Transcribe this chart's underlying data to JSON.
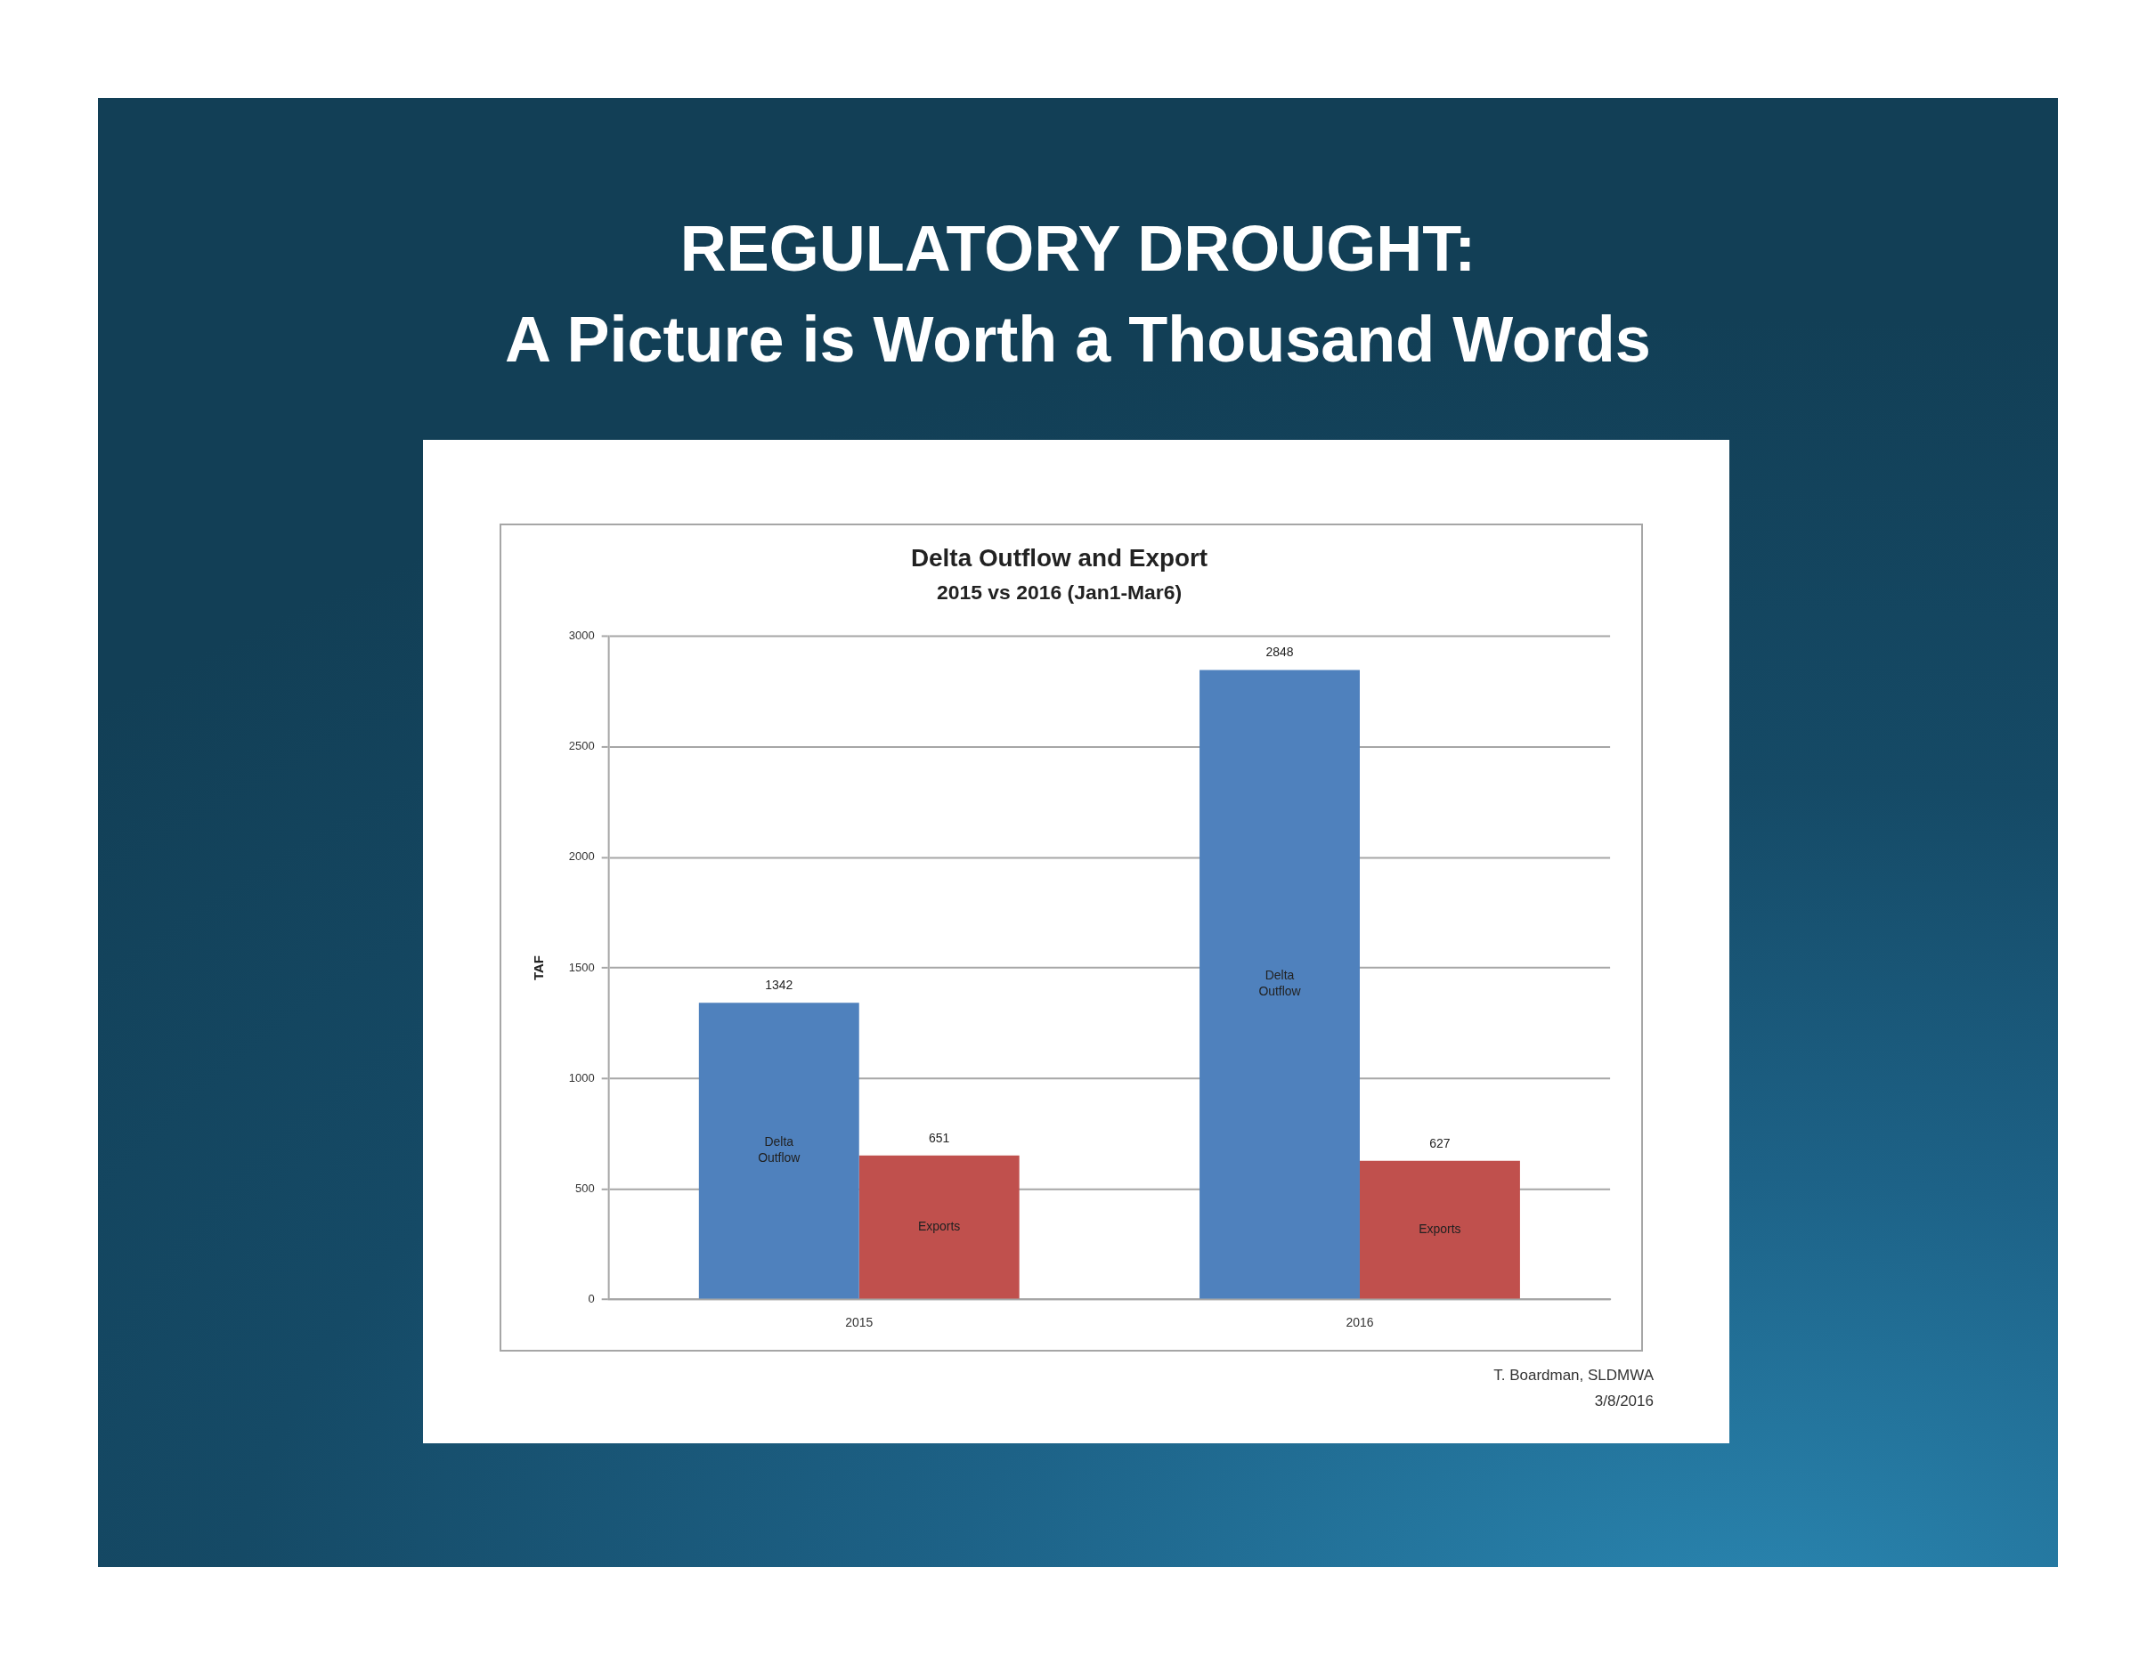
{
  "chart_data": {
    "type": "bar",
    "title": "Delta Outflow and Export",
    "subtitle": "2015 vs 2016 (Jan1-Mar6)",
    "ylabel": "TAF",
    "categories": [
      "2015",
      "2016"
    ],
    "series": [
      {
        "name": "Delta Outflow",
        "color": "#4f81bd",
        "values": [
          1342,
          2848
        ]
      },
      {
        "name": "Exports",
        "color": "#c0504d",
        "values": [
          651,
          627
        ]
      }
    ],
    "ylim": [
      0,
      3000
    ],
    "yticks": [
      0,
      500,
      1000,
      1500,
      2000,
      2500,
      3000
    ],
    "grid": "y",
    "data_labels": true,
    "annotations": [
      "REGULATORY DROUGHT:",
      "A Picture is Worth a Thousand Words",
      "T. Boardman, SLDMWA",
      "3/8/2016"
    ]
  }
}
